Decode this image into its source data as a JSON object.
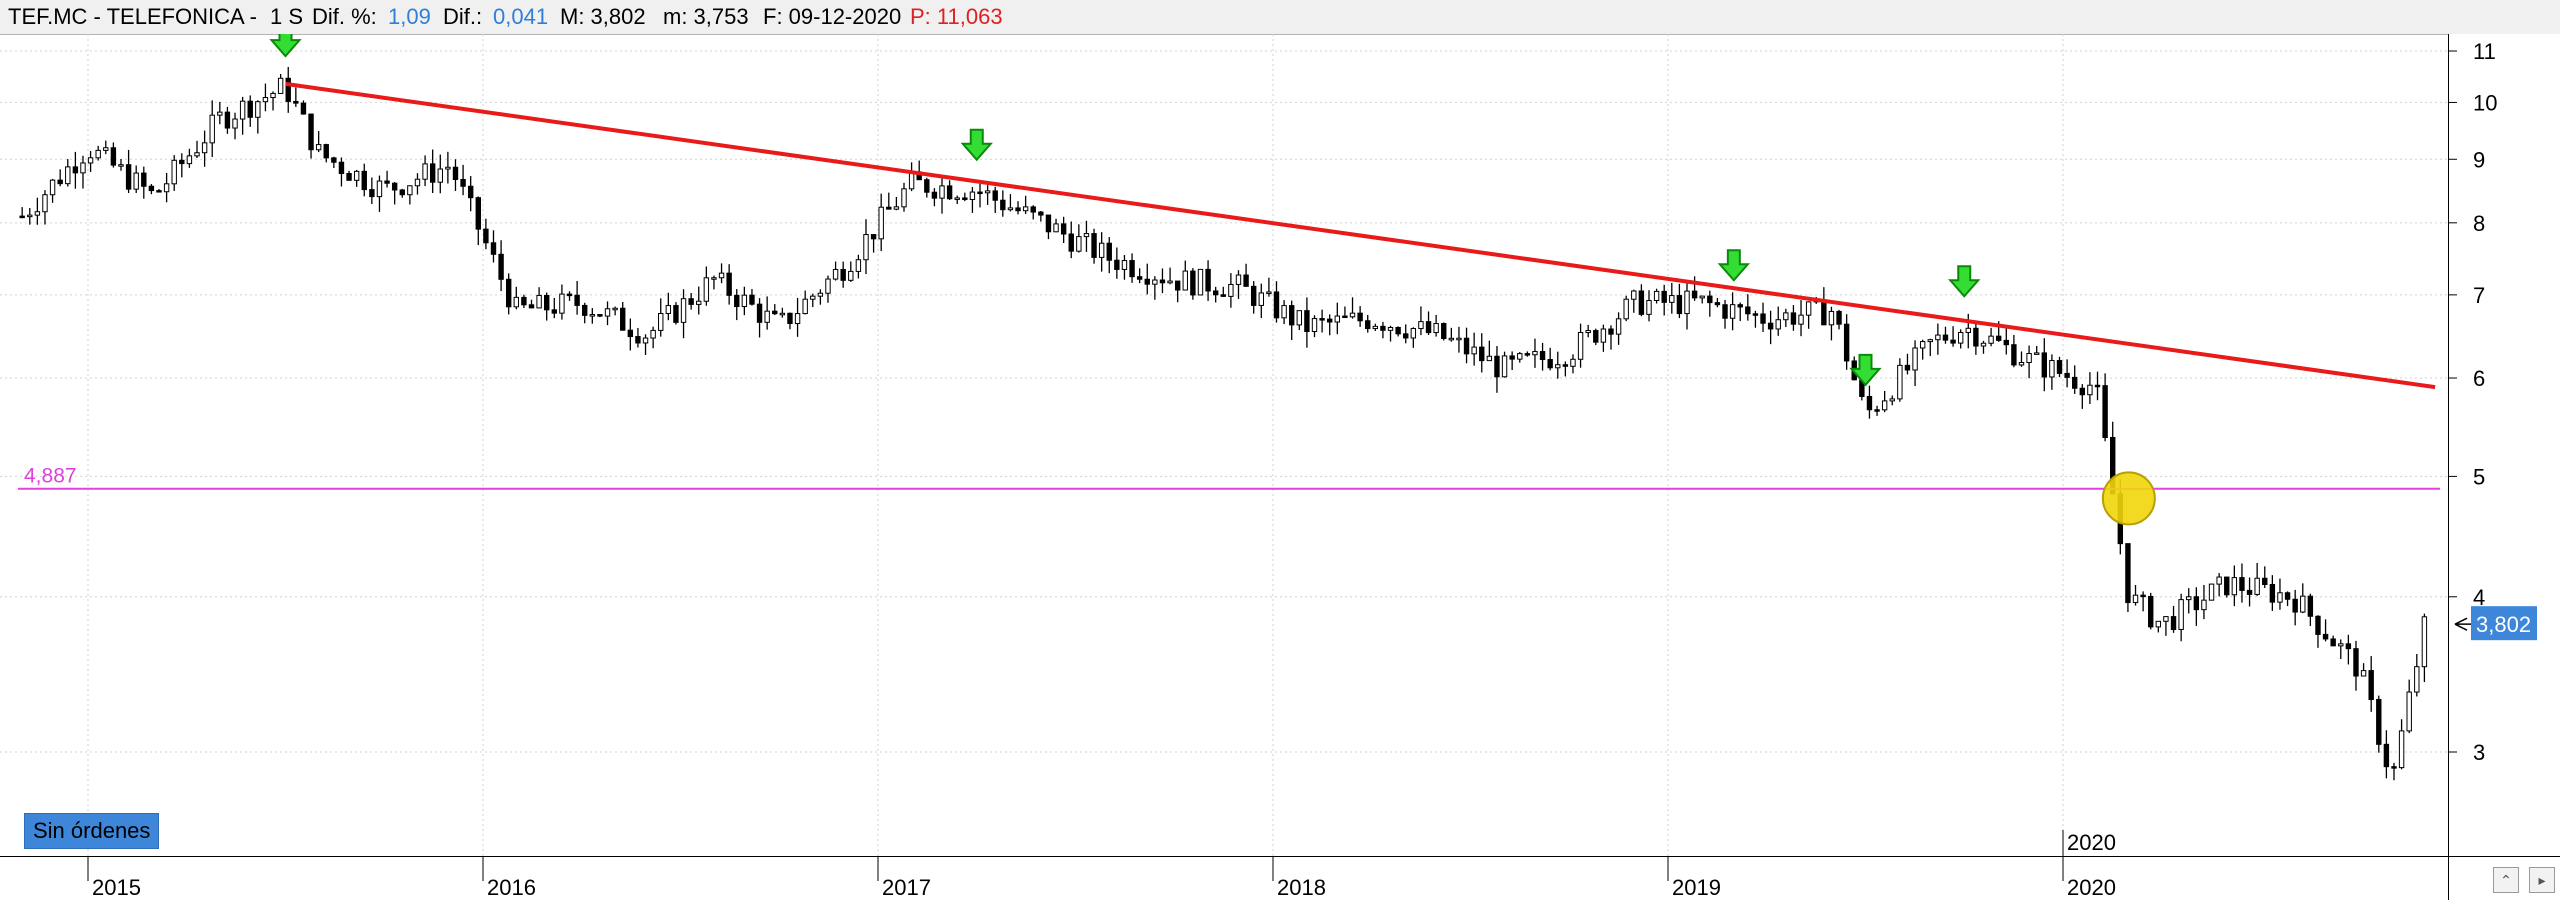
{
  "header": {
    "symbol": "TEF.MC - TELEFONICA -",
    "period": "1 S",
    "dif_pct_label": "Dif. %:",
    "dif_pct_value": "1,09",
    "dif_label": "Dif.:",
    "dif_value": "0,041",
    "max_label": "M: 3,802",
    "min_label": "m: 3,753",
    "date_label": "F: 09-12-2020",
    "p_label": "P: 11,063"
  },
  "price_axis": {
    "ticks": [
      "11",
      "10",
      "9",
      "8",
      "7",
      "6",
      "5",
      "4",
      "3"
    ],
    "last_price": "3,802"
  },
  "time_axis": {
    "years": [
      "2015",
      "2016",
      "2017",
      "2018",
      "2019",
      "2020"
    ],
    "marker": "2020"
  },
  "support_line": {
    "label": "4,887",
    "color": "#e040e0"
  },
  "trend_line": {
    "color": "#e81a1a"
  },
  "orders_badge": {
    "label": "Sin órdenes"
  },
  "colors": {
    "header_bg": "#f0f0f0",
    "dif_value": "#2e7fd8",
    "p_value": "#e02020",
    "arrow": "#33dd33",
    "circle": "#f2d60a",
    "last_price_bg": "#3d86d9"
  },
  "icons": {
    "sell_signal": "green-down-arrow-icon",
    "breakdown": "yellow-circle-icon",
    "price_pointer": "left-pointer-icon"
  },
  "chart_data": {
    "type": "candlestick",
    "title": "TEF.MC - TELEFONICA",
    "scale": "log",
    "ylim": [
      2.6,
      11.2
    ],
    "x_range": [
      "2014-11",
      "2020-12"
    ],
    "series": [
      {
        "name": "TEF.MC",
        "x": [
          "2014-11",
          "2015-01",
          "2015-03",
          "2015-05",
          "2015-07",
          "2015-08",
          "2015-10",
          "2015-12",
          "2016-02",
          "2016-04",
          "2016-06",
          "2016-08",
          "2016-10",
          "2016-12",
          "2017-02",
          "2017-04",
          "2017-06",
          "2017-08",
          "2017-10",
          "2017-12",
          "2018-02",
          "2018-04",
          "2018-06",
          "2018-08",
          "2018-10",
          "2018-12",
          "2019-02",
          "2019-04",
          "2019-06",
          "2019-07",
          "2019-09",
          "2019-10",
          "2019-12",
          "2020-02",
          "2020-03",
          "2020-04",
          "2020-06",
          "2020-08",
          "2020-10",
          "2020-11",
          "2020-12"
        ],
        "y": [
          8.1,
          9.2,
          8.4,
          9.7,
          10.3,
          9.1,
          8.5,
          8.9,
          6.8,
          6.9,
          6.5,
          7.2,
          6.6,
          7.4,
          8.6,
          8.5,
          8.0,
          7.5,
          7.2,
          7.1,
          6.6,
          6.7,
          6.5,
          6.1,
          6.3,
          6.9,
          6.9,
          6.7,
          6.8,
          5.6,
          6.4,
          6.6,
          6.2,
          5.9,
          4.0,
          3.8,
          4.1,
          4.0,
          3.5,
          2.85,
          3.8
        ]
      }
    ],
    "trend_line": {
      "from": [
        "2015-07",
        10.35
      ],
      "to": [
        "2020-12",
        5.9
      ]
    },
    "support_level": 4.887,
    "signals": [
      "2015-07",
      "2017-04",
      "2019-03",
      "2019-07",
      "2019-10"
    ],
    "breakdown_point": [
      "2020-03",
      4.8
    ],
    "last_price": 3.802
  }
}
